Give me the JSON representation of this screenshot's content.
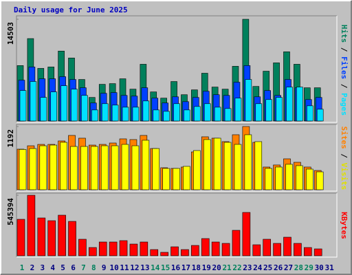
{
  "title": "Daily usage for June 2025",
  "legend_separator": " / ",
  "categories": [
    "1",
    "2",
    "3",
    "4",
    "5",
    "6",
    "7",
    "8",
    "9",
    "10",
    "11",
    "12",
    "13",
    "14",
    "15",
    "16",
    "17",
    "18",
    "19",
    "20",
    "21",
    "22",
    "23",
    "24",
    "25",
    "26",
    "27",
    "28",
    "29",
    "30",
    "31"
  ],
  "category_colors": [
    "#00805c",
    "#000080",
    "#000080",
    "#000080",
    "#000080",
    "#000080",
    "#00805c",
    "#00805c",
    "#000080",
    "#000080",
    "#000080",
    "#000080",
    "#000080",
    "#00805c",
    "#00805c",
    "#000080",
    "#000080",
    "#000080",
    "#000080",
    "#000080",
    "#00805c",
    "#00805c",
    "#000080",
    "#000080",
    "#000080",
    "#000080",
    "#000080",
    "#00805c",
    "#00805c",
    "#000080",
    "#000080"
  ],
  "chart_data": [
    {
      "type": "bar",
      "ylim": [
        0,
        14503
      ],
      "yticks": [
        14503
      ],
      "series": [
        {
          "name": "Hits",
          "color": "#00805c",
          "values": [
            7900,
            11750,
            7500,
            7700,
            9970,
            8980,
            5920,
            3360,
            5230,
            5330,
            6020,
            4540,
            8090,
            4150,
            3260,
            5630,
            3750,
            4440,
            6810,
            4840,
            4540,
            7800,
            14503,
            4930,
            7100,
            8290,
            9870,
            8090,
            4740,
            4740,
            null
          ]
        },
        {
          "name": "Files",
          "color": "#0040ff",
          "values": [
            5820,
            7700,
            6020,
            6020,
            6320,
            5920,
            4740,
            2570,
            3950,
            4050,
            3650,
            3550,
            4740,
            3260,
            2570,
            3450,
            2760,
            3360,
            4240,
            3750,
            3650,
            5530,
            7900,
            3450,
            4340,
            3650,
            5920,
            4740,
            3060,
            3360,
            null
          ]
        },
        {
          "name": "Pages",
          "color": "#00e0ff",
          "values": [
            4340,
            5630,
            3360,
            4150,
            5030,
            4540,
            3650,
            1580,
            2470,
            2270,
            1970,
            1970,
            2860,
            1580,
            1380,
            2470,
            1580,
            2070,
            2470,
            1970,
            1780,
            3260,
            5920,
            2470,
            3060,
            3360,
            4840,
            4840,
            2170,
            1680,
            null
          ]
        }
      ]
    },
    {
      "type": "bar",
      "ylim": [
        0,
        1192
      ],
      "yticks": [
        1192
      ],
      "series": [
        {
          "name": "Sites",
          "color": "#ff8000",
          "values": [
            765,
            829,
            855,
            855,
            920,
            1024,
            972,
            842,
            855,
            881,
            959,
            946,
            1024,
            777,
            415,
            402,
            428,
            713,
            998,
            972,
            907,
            1037,
            1192,
            894,
            428,
            467,
            583,
            518,
            428,
            363,
            null
          ]
        },
        {
          "name": "Visits",
          "color": "#ffff00",
          "values": [
            760,
            777,
            829,
            842,
            894,
            816,
            816,
            816,
            829,
            829,
            855,
            829,
            933,
            777,
            402,
            402,
            441,
            739,
            946,
            972,
            894,
            855,
            1037,
            907,
            402,
            428,
            480,
            454,
            389,
            337,
            null
          ]
        }
      ]
    },
    {
      "type": "bar",
      "ylim": [
        0,
        545394
      ],
      "yticks": [
        545394
      ],
      "series": [
        {
          "name": "KBytes",
          "color": "#ff0000",
          "values": [
            328500,
            545394,
            340900,
            316100,
            365700,
            309900,
            148800,
            74400,
            124000,
            124000,
            136400,
            105400,
            124000,
            55800,
            31000,
            80600,
            55800,
            93000,
            155000,
            124000,
            111600,
            229300,
            390500,
            99200,
            148800,
            111600,
            167300,
            111600,
            74400,
            62000,
            null
          ]
        }
      ]
    }
  ]
}
